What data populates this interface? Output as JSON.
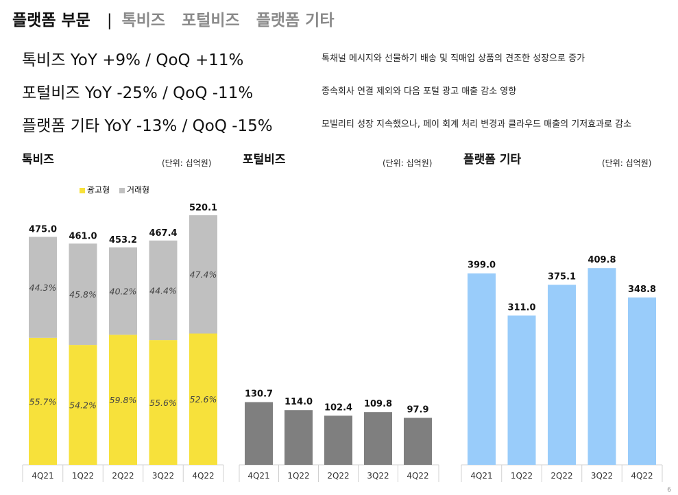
{
  "tabs": [
    {
      "label": "플랫폼 부문",
      "active": true
    },
    {
      "label": "톡비즈",
      "active": false
    },
    {
      "label": "포털비즈",
      "active": false
    },
    {
      "label": "플랫폼 기타",
      "active": false
    }
  ],
  "tab_separator": "|",
  "kpis": [
    {
      "label": "톡비즈  YoY +9% / QoQ +11%",
      "note": "톡채널 메시지와 선물하기 배송 및 직매입 상품의 견조한 성장으로 증가"
    },
    {
      "label": "포털비즈  YoY -25% / QoQ -11%",
      "note": "종속회사 연결 제외와 다음 포털 광고 매출 감소 영향"
    },
    {
      "label": "플랫폼 기타  YoY -13% / QoQ -15%",
      "note": "모빌리티 성장 지속했으나, 페이 회계 처리 변경과 클라우드 매출의 기저효과로 감소"
    }
  ],
  "page_number": "6",
  "chart_data": [
    {
      "type": "bar",
      "stacked": true,
      "title": "톡비즈",
      "unit": "(단위: 십억원)",
      "categories": [
        "4Q21",
        "1Q22",
        "2Q22",
        "3Q22",
        "4Q22"
      ],
      "totals": [
        475.0,
        461.0,
        453.2,
        467.4,
        520.1
      ],
      "total_labels": [
        "475.0",
        "461.0",
        "453.2",
        "467.4",
        "520.1"
      ],
      "series": [
        {
          "name": "광고형",
          "color": "#f7e13b",
          "share": [
            55.7,
            54.2,
            59.8,
            55.6,
            52.6
          ],
          "labels": [
            "55.7%",
            "54.2%",
            "59.8%",
            "55.6%",
            "52.6%"
          ]
        },
        {
          "name": "거래형",
          "color": "#c0c0c0",
          "share": [
            44.3,
            45.8,
            40.2,
            44.4,
            47.4
          ],
          "labels": [
            "44.3%",
            "45.8%",
            "40.2%",
            "44.4%",
            "47.4%"
          ]
        }
      ],
      "ylim": [
        0,
        600
      ]
    },
    {
      "type": "bar",
      "title": "포털비즈",
      "unit": "(단위: 십억원)",
      "categories": [
        "4Q21",
        "1Q22",
        "2Q22",
        "3Q22",
        "4Q22"
      ],
      "values": [
        130.7,
        114.0,
        102.4,
        109.8,
        97.9
      ],
      "value_labels": [
        "130.7",
        "114.0",
        "102.4",
        "109.8",
        "97.9"
      ],
      "color": "#7f7f7f",
      "ylim": [
        0,
        600
      ]
    },
    {
      "type": "bar",
      "title": "플랫폼 기타",
      "unit": "(단위: 십억원)",
      "categories": [
        "4Q21",
        "1Q22",
        "2Q22",
        "3Q22",
        "4Q22"
      ],
      "values": [
        399.0,
        311.0,
        375.1,
        409.8,
        348.8
      ],
      "value_labels": [
        "399.0",
        "311.0",
        "375.1",
        "409.8",
        "348.8"
      ],
      "color": "#99ccfa",
      "ylim": [
        0,
        600
      ]
    }
  ]
}
